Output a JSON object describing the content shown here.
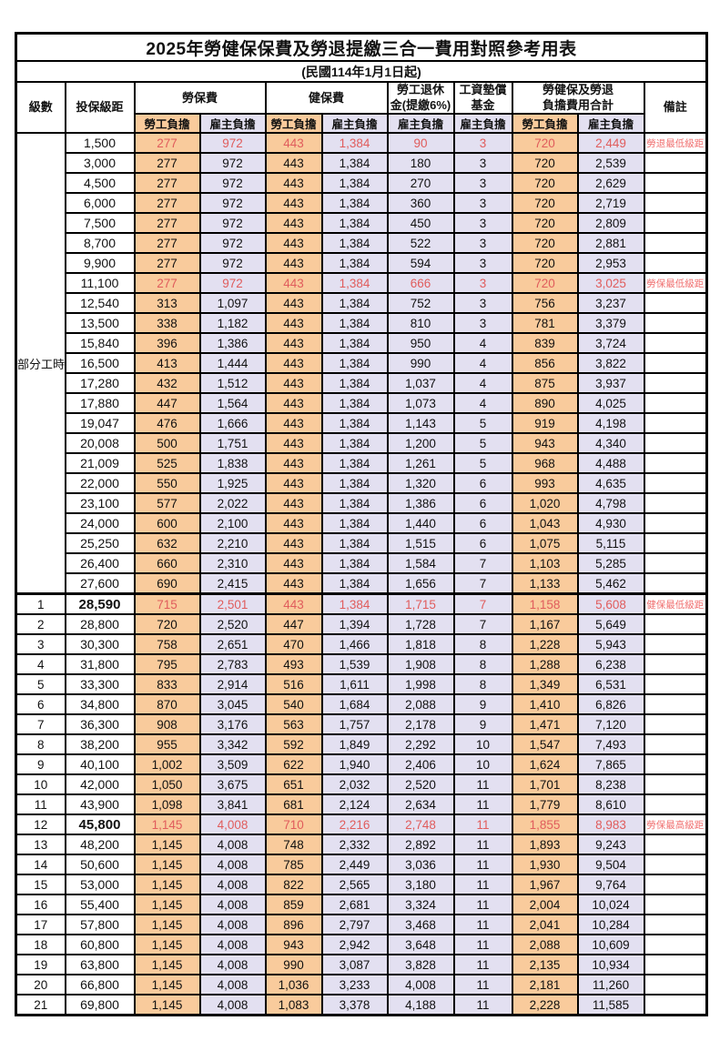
{
  "title": "2025年勞健保保費及勞退提繳三合一費用對照參考用表",
  "subtitle": "(民國114年1月1日起)",
  "header": {
    "level": "級數",
    "bracket": "投保級距",
    "labor_fee": "勞保費",
    "health_fee": "健保費",
    "pension_line1": "勞工退休",
    "pension_line2": "金(提繳6%)",
    "wage_fund_line1": "工資墊償",
    "wage_fund_line2": "基金",
    "total_line1": "勞健保及勞退",
    "total_line2": "負擔費用合計",
    "remark": "備註",
    "employee_burden": "勞工負擔",
    "employer_burden": "雇主負擔"
  },
  "part_time_label": "部分工時",
  "part_time_row_count": 23,
  "colors": {
    "employee_col_bg": "#f9cb9c",
    "employer_col_bg": "#e3e0f1",
    "highlight_text": "#e05c5c",
    "note_text": "#f07070",
    "border": "#000000"
  },
  "rows": [
    {
      "level": "",
      "bracket": "1,500",
      "labor_emp": "277",
      "labor_er": "972",
      "health_emp": "443",
      "health_er": "1,384",
      "pension_er": "90",
      "wage_er": "3",
      "total_emp": "720",
      "total_er": "2,449",
      "note": "勞退最低級距",
      "red": true
    },
    {
      "level": "",
      "bracket": "3,000",
      "labor_emp": "277",
      "labor_er": "972",
      "health_emp": "443",
      "health_er": "1,384",
      "pension_er": "180",
      "wage_er": "3",
      "total_emp": "720",
      "total_er": "2,539",
      "note": ""
    },
    {
      "level": "",
      "bracket": "4,500",
      "labor_emp": "277",
      "labor_er": "972",
      "health_emp": "443",
      "health_er": "1,384",
      "pension_er": "270",
      "wage_er": "3",
      "total_emp": "720",
      "total_er": "2,629",
      "note": ""
    },
    {
      "level": "",
      "bracket": "6,000",
      "labor_emp": "277",
      "labor_er": "972",
      "health_emp": "443",
      "health_er": "1,384",
      "pension_er": "360",
      "wage_er": "3",
      "total_emp": "720",
      "total_er": "2,719",
      "note": ""
    },
    {
      "level": "",
      "bracket": "7,500",
      "labor_emp": "277",
      "labor_er": "972",
      "health_emp": "443",
      "health_er": "1,384",
      "pension_er": "450",
      "wage_er": "3",
      "total_emp": "720",
      "total_er": "2,809",
      "note": ""
    },
    {
      "level": "",
      "bracket": "8,700",
      "labor_emp": "277",
      "labor_er": "972",
      "health_emp": "443",
      "health_er": "1,384",
      "pension_er": "522",
      "wage_er": "3",
      "total_emp": "720",
      "total_er": "2,881",
      "note": ""
    },
    {
      "level": "",
      "bracket": "9,900",
      "labor_emp": "277",
      "labor_er": "972",
      "health_emp": "443",
      "health_er": "1,384",
      "pension_er": "594",
      "wage_er": "3",
      "total_emp": "720",
      "total_er": "2,953",
      "note": ""
    },
    {
      "level": "",
      "bracket": "11,100",
      "labor_emp": "277",
      "labor_er": "972",
      "health_emp": "443",
      "health_er": "1,384",
      "pension_er": "666",
      "wage_er": "3",
      "total_emp": "720",
      "total_er": "3,025",
      "note": "勞保最低級距",
      "red": true
    },
    {
      "level": "",
      "bracket": "12,540",
      "labor_emp": "313",
      "labor_er": "1,097",
      "health_emp": "443",
      "health_er": "1,384",
      "pension_er": "752",
      "wage_er": "3",
      "total_emp": "756",
      "total_er": "3,237",
      "note": ""
    },
    {
      "level": "",
      "bracket": "13,500",
      "labor_emp": "338",
      "labor_er": "1,182",
      "health_emp": "443",
      "health_er": "1,384",
      "pension_er": "810",
      "wage_er": "3",
      "total_emp": "781",
      "total_er": "3,379",
      "note": ""
    },
    {
      "level": "",
      "bracket": "15,840",
      "labor_emp": "396",
      "labor_er": "1,386",
      "health_emp": "443",
      "health_er": "1,384",
      "pension_er": "950",
      "wage_er": "4",
      "total_emp": "839",
      "total_er": "3,724",
      "note": ""
    },
    {
      "level": "",
      "bracket": "16,500",
      "labor_emp": "413",
      "labor_er": "1,444",
      "health_emp": "443",
      "health_er": "1,384",
      "pension_er": "990",
      "wage_er": "4",
      "total_emp": "856",
      "total_er": "3,822",
      "note": ""
    },
    {
      "level": "",
      "bracket": "17,280",
      "labor_emp": "432",
      "labor_er": "1,512",
      "health_emp": "443",
      "health_er": "1,384",
      "pension_er": "1,037",
      "wage_er": "4",
      "total_emp": "875",
      "total_er": "3,937",
      "note": ""
    },
    {
      "level": "",
      "bracket": "17,880",
      "labor_emp": "447",
      "labor_er": "1,564",
      "health_emp": "443",
      "health_er": "1,384",
      "pension_er": "1,073",
      "wage_er": "4",
      "total_emp": "890",
      "total_er": "4,025",
      "note": ""
    },
    {
      "level": "",
      "bracket": "19,047",
      "labor_emp": "476",
      "labor_er": "1,666",
      "health_emp": "443",
      "health_er": "1,384",
      "pension_er": "1,143",
      "wage_er": "5",
      "total_emp": "919",
      "total_er": "4,198",
      "note": ""
    },
    {
      "level": "",
      "bracket": "20,008",
      "labor_emp": "500",
      "labor_er": "1,751",
      "health_emp": "443",
      "health_er": "1,384",
      "pension_er": "1,200",
      "wage_er": "5",
      "total_emp": "943",
      "total_er": "4,340",
      "note": ""
    },
    {
      "level": "",
      "bracket": "21,009",
      "labor_emp": "525",
      "labor_er": "1,838",
      "health_emp": "443",
      "health_er": "1,384",
      "pension_er": "1,261",
      "wage_er": "5",
      "total_emp": "968",
      "total_er": "4,488",
      "note": ""
    },
    {
      "level": "",
      "bracket": "22,000",
      "labor_emp": "550",
      "labor_er": "1,925",
      "health_emp": "443",
      "health_er": "1,384",
      "pension_er": "1,320",
      "wage_er": "6",
      "total_emp": "993",
      "total_er": "4,635",
      "note": ""
    },
    {
      "level": "",
      "bracket": "23,100",
      "labor_emp": "577",
      "labor_er": "2,022",
      "health_emp": "443",
      "health_er": "1,384",
      "pension_er": "1,386",
      "wage_er": "6",
      "total_emp": "1,020",
      "total_er": "4,798",
      "note": ""
    },
    {
      "level": "",
      "bracket": "24,000",
      "labor_emp": "600",
      "labor_er": "2,100",
      "health_emp": "443",
      "health_er": "1,384",
      "pension_er": "1,440",
      "wage_er": "6",
      "total_emp": "1,043",
      "total_er": "4,930",
      "note": ""
    },
    {
      "level": "",
      "bracket": "25,250",
      "labor_emp": "632",
      "labor_er": "2,210",
      "health_emp": "443",
      "health_er": "1,384",
      "pension_er": "1,515",
      "wage_er": "6",
      "total_emp": "1,075",
      "total_er": "5,115",
      "note": ""
    },
    {
      "level": "",
      "bracket": "26,400",
      "labor_emp": "660",
      "labor_er": "2,310",
      "health_emp": "443",
      "health_er": "1,384",
      "pension_er": "1,584",
      "wage_er": "7",
      "total_emp": "1,103",
      "total_er": "5,285",
      "note": ""
    },
    {
      "level": "",
      "bracket": "27,600",
      "labor_emp": "690",
      "labor_er": "2,415",
      "health_emp": "443",
      "health_er": "1,384",
      "pension_er": "1,656",
      "wage_er": "7",
      "total_emp": "1,133",
      "total_er": "5,462",
      "note": ""
    },
    {
      "level": "1",
      "bracket": "28,590",
      "labor_emp": "715",
      "labor_er": "2,501",
      "health_emp": "443",
      "health_er": "1,384",
      "pension_er": "1,715",
      "wage_er": "7",
      "total_emp": "1,158",
      "total_er": "5,608",
      "note": "健保最低級距",
      "red": true,
      "bold_bracket": true,
      "thick_top": true
    },
    {
      "level": "2",
      "bracket": "28,800",
      "labor_emp": "720",
      "labor_er": "2,520",
      "health_emp": "447",
      "health_er": "1,394",
      "pension_er": "1,728",
      "wage_er": "7",
      "total_emp": "1,167",
      "total_er": "5,649",
      "note": ""
    },
    {
      "level": "3",
      "bracket": "30,300",
      "labor_emp": "758",
      "labor_er": "2,651",
      "health_emp": "470",
      "health_er": "1,466",
      "pension_er": "1,818",
      "wage_er": "8",
      "total_emp": "1,228",
      "total_er": "5,943",
      "note": ""
    },
    {
      "level": "4",
      "bracket": "31,800",
      "labor_emp": "795",
      "labor_er": "2,783",
      "health_emp": "493",
      "health_er": "1,539",
      "pension_er": "1,908",
      "wage_er": "8",
      "total_emp": "1,288",
      "total_er": "6,238",
      "note": ""
    },
    {
      "level": "5",
      "bracket": "33,300",
      "labor_emp": "833",
      "labor_er": "2,914",
      "health_emp": "516",
      "health_er": "1,611",
      "pension_er": "1,998",
      "wage_er": "8",
      "total_emp": "1,349",
      "total_er": "6,531",
      "note": ""
    },
    {
      "level": "6",
      "bracket": "34,800",
      "labor_emp": "870",
      "labor_er": "3,045",
      "health_emp": "540",
      "health_er": "1,684",
      "pension_er": "2,088",
      "wage_er": "9",
      "total_emp": "1,410",
      "total_er": "6,826",
      "note": ""
    },
    {
      "level": "7",
      "bracket": "36,300",
      "labor_emp": "908",
      "labor_er": "3,176",
      "health_emp": "563",
      "health_er": "1,757",
      "pension_er": "2,178",
      "wage_er": "9",
      "total_emp": "1,471",
      "total_er": "7,120",
      "note": ""
    },
    {
      "level": "8",
      "bracket": "38,200",
      "labor_emp": "955",
      "labor_er": "3,342",
      "health_emp": "592",
      "health_er": "1,849",
      "pension_er": "2,292",
      "wage_er": "10",
      "total_emp": "1,547",
      "total_er": "7,493",
      "note": ""
    },
    {
      "level": "9",
      "bracket": "40,100",
      "labor_emp": "1,002",
      "labor_er": "3,509",
      "health_emp": "622",
      "health_er": "1,940",
      "pension_er": "2,406",
      "wage_er": "10",
      "total_emp": "1,624",
      "total_er": "7,865",
      "note": ""
    },
    {
      "level": "10",
      "bracket": "42,000",
      "labor_emp": "1,050",
      "labor_er": "3,675",
      "health_emp": "651",
      "health_er": "2,032",
      "pension_er": "2,520",
      "wage_er": "11",
      "total_emp": "1,701",
      "total_er": "8,238",
      "note": ""
    },
    {
      "level": "11",
      "bracket": "43,900",
      "labor_emp": "1,098",
      "labor_er": "3,841",
      "health_emp": "681",
      "health_er": "2,124",
      "pension_er": "2,634",
      "wage_er": "11",
      "total_emp": "1,779",
      "total_er": "8,610",
      "note": ""
    },
    {
      "level": "12",
      "bracket": "45,800",
      "labor_emp": "1,145",
      "labor_er": "4,008",
      "health_emp": "710",
      "health_er": "2,216",
      "pension_er": "2,748",
      "wage_er": "11",
      "total_emp": "1,855",
      "total_er": "8,983",
      "note": "勞保最高級距",
      "red": true,
      "bold_bracket": true
    },
    {
      "level": "13",
      "bracket": "48,200",
      "labor_emp": "1,145",
      "labor_er": "4,008",
      "health_emp": "748",
      "health_er": "2,332",
      "pension_er": "2,892",
      "wage_er": "11",
      "total_emp": "1,893",
      "total_er": "9,243",
      "note": ""
    },
    {
      "level": "14",
      "bracket": "50,600",
      "labor_emp": "1,145",
      "labor_er": "4,008",
      "health_emp": "785",
      "health_er": "2,449",
      "pension_er": "3,036",
      "wage_er": "11",
      "total_emp": "1,930",
      "total_er": "9,504",
      "note": ""
    },
    {
      "level": "15",
      "bracket": "53,000",
      "labor_emp": "1,145",
      "labor_er": "4,008",
      "health_emp": "822",
      "health_er": "2,565",
      "pension_er": "3,180",
      "wage_er": "11",
      "total_emp": "1,967",
      "total_er": "9,764",
      "note": ""
    },
    {
      "level": "16",
      "bracket": "55,400",
      "labor_emp": "1,145",
      "labor_er": "4,008",
      "health_emp": "859",
      "health_er": "2,681",
      "pension_er": "3,324",
      "wage_er": "11",
      "total_emp": "2,004",
      "total_er": "10,024",
      "note": ""
    },
    {
      "level": "17",
      "bracket": "57,800",
      "labor_emp": "1,145",
      "labor_er": "4,008",
      "health_emp": "896",
      "health_er": "2,797",
      "pension_er": "3,468",
      "wage_er": "11",
      "total_emp": "2,041",
      "total_er": "10,284",
      "note": ""
    },
    {
      "level": "18",
      "bracket": "60,800",
      "labor_emp": "1,145",
      "labor_er": "4,008",
      "health_emp": "943",
      "health_er": "2,942",
      "pension_er": "3,648",
      "wage_er": "11",
      "total_emp": "2,088",
      "total_er": "10,609",
      "note": ""
    },
    {
      "level": "19",
      "bracket": "63,800",
      "labor_emp": "1,145",
      "labor_er": "4,008",
      "health_emp": "990",
      "health_er": "3,087",
      "pension_er": "3,828",
      "wage_er": "11",
      "total_emp": "2,135",
      "total_er": "10,934",
      "note": ""
    },
    {
      "level": "20",
      "bracket": "66,800",
      "labor_emp": "1,145",
      "labor_er": "4,008",
      "health_emp": "1,036",
      "health_er": "3,233",
      "pension_er": "4,008",
      "wage_er": "11",
      "total_emp": "2,181",
      "total_er": "11,260",
      "note": ""
    },
    {
      "level": "21",
      "bracket": "69,800",
      "labor_emp": "1,145",
      "labor_er": "4,008",
      "health_emp": "1,083",
      "health_er": "3,378",
      "pension_er": "4,188",
      "wage_er": "11",
      "total_emp": "2,228",
      "total_er": "11,585",
      "note": ""
    }
  ]
}
